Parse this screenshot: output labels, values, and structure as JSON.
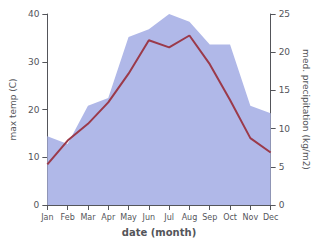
{
  "chart_data": {
    "type": "line",
    "categories": [
      "Jan",
      "Feb",
      "Mar",
      "Apr",
      "May",
      "Jun",
      "Jul",
      "Aug",
      "Sep",
      "Oct",
      "Nov",
      "Dec"
    ],
    "series": [
      {
        "type": "area",
        "color": "#b0b8e8",
        "axis": "y2",
        "values": [
          9,
          8,
          13,
          14,
          22,
          23,
          25,
          24,
          21,
          21,
          13,
          12
        ]
      },
      {
        "type": "line",
        "color": "#9b3a4a",
        "values": [
          8.5,
          13.5,
          17.0,
          21.5,
          27.5,
          34.5,
          33.0,
          35.5,
          29.5,
          22.0,
          14.0,
          11.0
        ]
      }
    ],
    "xlabel": "date (month)",
    "ylabel": "max temp (C)",
    "y2label": "med. precipitation (kg/m2)",
    "ylim": [
      0,
      40
    ],
    "yticks": [
      0,
      10,
      20,
      30,
      40
    ],
    "y2lim": [
      0,
      25
    ],
    "y2ticks": [
      0,
      5,
      10,
      15,
      20,
      25
    ],
    "grid": false
  }
}
